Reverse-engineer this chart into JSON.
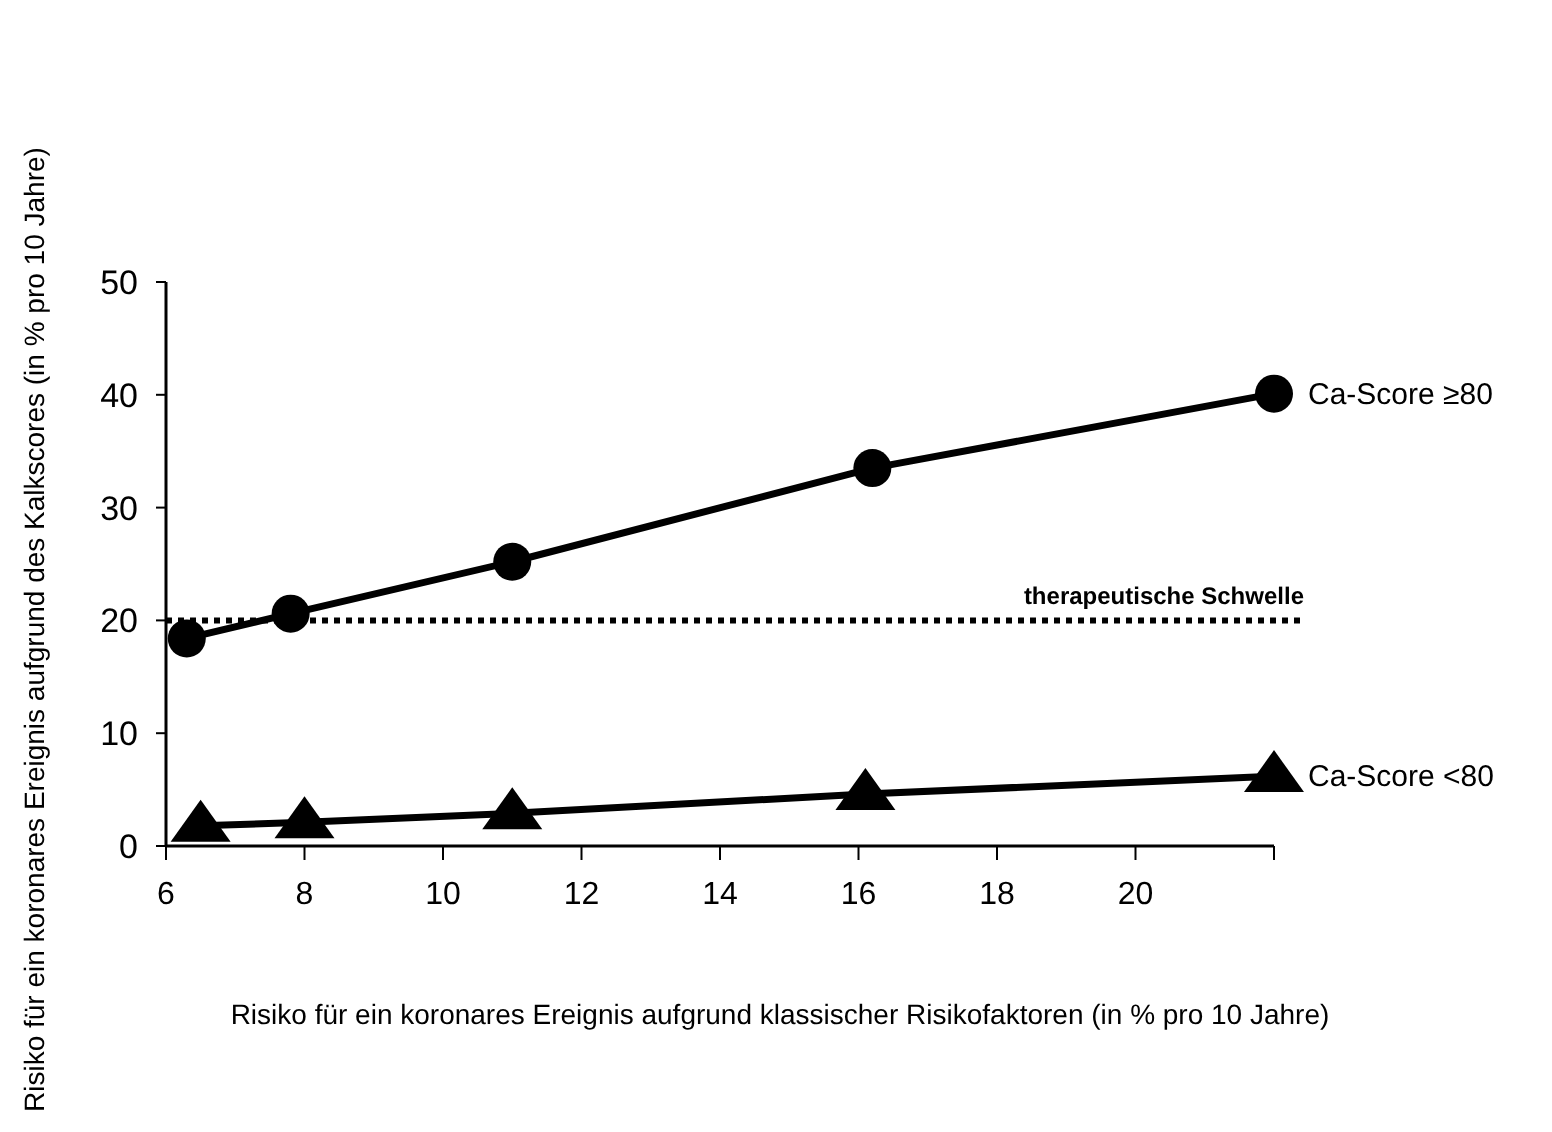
{
  "chart_data": {
    "type": "line",
    "xlabel": "Risiko für ein koronares Ereignis aufgrund klassischer Risikofaktoren (in % pro 10 Jahre)",
    "ylabel": "Risiko für ein koronares Ereignis aufgrund des Kalkscores (in % pro 10 Jahre)",
    "xlim": [
      6,
      22
    ],
    "xticks": [
      6,
      8,
      10,
      12,
      14,
      16,
      18,
      20,
      {
        "value": 22,
        "label": null
      }
    ],
    "ylim": [
      0,
      50
    ],
    "yticks": [
      0,
      10,
      20,
      30,
      40,
      50
    ],
    "series": [
      {
        "name": "Ca-Score ≥80",
        "color": "#000000",
        "marker": "circle",
        "x": [
          6.3,
          7.8,
          11,
          16.2,
          22
        ],
        "values": [
          18.4,
          20.6,
          25.2,
          33.5,
          40.1
        ]
      },
      {
        "name": "Ca-Score <80",
        "color": "#000000",
        "marker": "triangle",
        "x": [
          6.5,
          8,
          11,
          16.1,
          22
        ],
        "values": [
          1.8,
          2.1,
          2.9,
          4.6,
          6.2
        ]
      }
    ],
    "ref_lines": [
      {
        "axis": "y",
        "value": 20,
        "label": "therapeutische Schwelle",
        "line_style": "dotted"
      }
    ],
    "legend": false,
    "grid": false,
    "line_style": "solid"
  }
}
